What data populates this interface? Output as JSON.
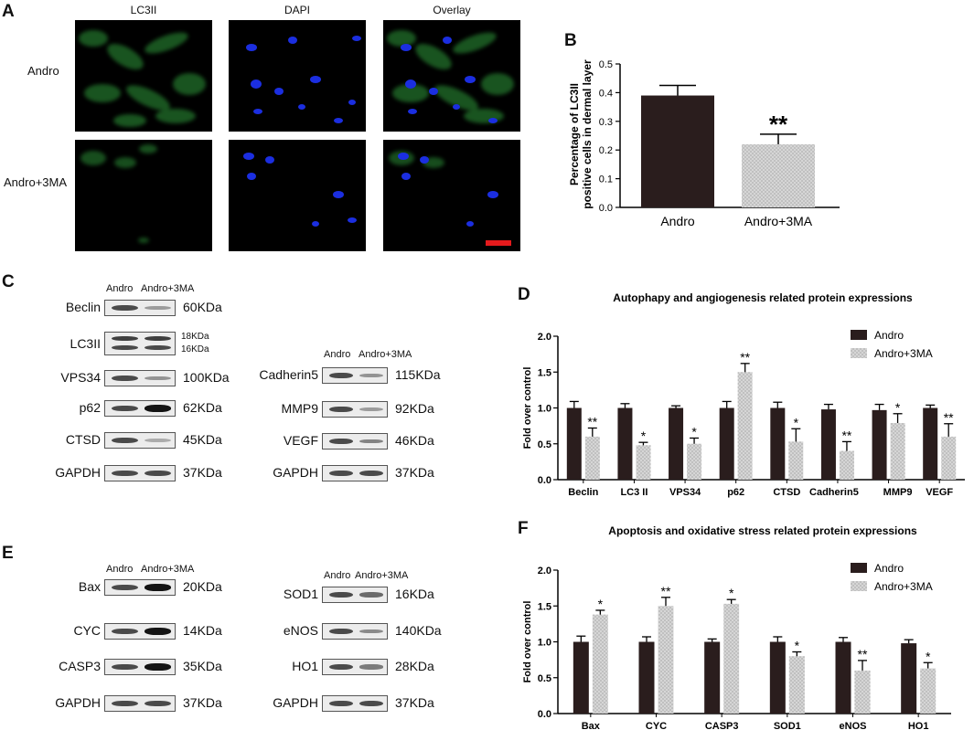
{
  "panels": {
    "A": "A",
    "B": "B",
    "C": "C",
    "D": "D",
    "E": "E",
    "F": "F"
  },
  "microscopy": {
    "columns": [
      "LC3II",
      "DAPI",
      "Overlay"
    ],
    "rows": [
      "Andro",
      "Andro+3MA"
    ],
    "colors": {
      "lc3": "#2e9a3a",
      "dapi": "#1b2ee0",
      "scalebar": "#e41a1c"
    }
  },
  "blots": {
    "C_left": {
      "header": [
        "Andro",
        "Andro+3MA"
      ],
      "rows": [
        {
          "name": "Beclin",
          "kda": "60KDa",
          "ratio": 0.5
        },
        {
          "name": "LC3II",
          "kda_top": "18KDa",
          "kda_bottom": "16KDa",
          "ratio": 1.0
        },
        {
          "name": "VPS34",
          "kda": "100KDa",
          "ratio": 0.55
        },
        {
          "name": "p62",
          "kda": "62KDa",
          "ratio": 1.4
        },
        {
          "name": "CTSD",
          "kda": "45KDa",
          "ratio": 0.4
        },
        {
          "name": "GAPDH",
          "kda": "37KDa",
          "ratio": 1.0
        }
      ]
    },
    "C_right": {
      "header": [
        "Andro",
        "Andro+3MA"
      ],
      "rows": [
        {
          "name": "Cadherin5",
          "kda": "115KDa",
          "ratio": 0.55
        },
        {
          "name": "MMP9",
          "kda": "92KDa",
          "ratio": 0.5
        },
        {
          "name": "VEGF",
          "kda": "46KDa",
          "ratio": 0.65
        },
        {
          "name": "GAPDH",
          "kda": "37KDa",
          "ratio": 1.0
        }
      ]
    },
    "E_left": {
      "header": [
        "Andro",
        "Andro+3MA"
      ],
      "rows": [
        {
          "name": "Bax",
          "kda": "20KDa",
          "ratio": 1.4
        },
        {
          "name": "CYC",
          "kda": "14KDa",
          "ratio": 1.5
        },
        {
          "name": "CASP3",
          "kda": "35KDa",
          "ratio": 1.4
        },
        {
          "name": "GAPDH",
          "kda": "37KDa",
          "ratio": 1.0
        }
      ]
    },
    "E_right": {
      "header": [
        "Andro",
        "Andro+3MA"
      ],
      "rows": [
        {
          "name": "SOD1",
          "kda": "16KDa",
          "ratio": 0.8
        },
        {
          "name": "eNOS",
          "kda": "140KDa",
          "ratio": 0.6
        },
        {
          "name": "HO1",
          "kda": "28KDa",
          "ratio": 0.7
        },
        {
          "name": "GAPDH",
          "kda": "37KDa",
          "ratio": 1.0
        }
      ]
    }
  },
  "chart_data": [
    {
      "id": "B",
      "type": "bar",
      "title": "",
      "ylabel_lines": [
        "Percentage of LC3II",
        "positive cells in dermal layer"
      ],
      "categories": [
        "Andro",
        "Andro+3MA"
      ],
      "values": [
        0.39,
        0.22
      ],
      "errors": [
        0.035,
        0.035
      ],
      "significance": [
        "",
        "**"
      ],
      "ylim": [
        0,
        0.5
      ],
      "yticks": [
        "0.0",
        "0.1",
        "0.2",
        "0.3",
        "0.4",
        "0.5"
      ],
      "colors": [
        "#2a1d1d",
        "#cfcfcf"
      ]
    },
    {
      "id": "D",
      "type": "bar",
      "title": "Autophapy and angiogenesis related protein expressions",
      "ylabel": "Fold over control",
      "categories": [
        "Beclin",
        "LC3 II",
        "VPS34",
        "p62",
        "CTSD",
        "Cadherin5",
        "MMP9",
        "VEGF"
      ],
      "ylim": [
        0,
        2.0
      ],
      "yticks": [
        "0.0",
        "0.5",
        "1.0",
        "1.5",
        "2.0"
      ],
      "legend_position": "top-right",
      "series": [
        {
          "name": "Andro",
          "color": "#2a1d1d",
          "values": [
            1.0,
            1.0,
            1.0,
            1.0,
            1.0,
            0.98,
            0.97,
            1.0
          ],
          "errors": [
            0.09,
            0.06,
            0.03,
            0.09,
            0.08,
            0.07,
            0.08,
            0.04
          ],
          "significance": [
            "",
            "",
            "",
            "",
            "",
            "",
            "",
            ""
          ]
        },
        {
          "name": "Andro+3MA",
          "color": "#cfcfcf",
          "values": [
            0.6,
            0.48,
            0.5,
            1.5,
            0.53,
            0.4,
            0.79,
            0.6
          ],
          "errors": [
            0.12,
            0.04,
            0.08,
            0.12,
            0.18,
            0.13,
            0.13,
            0.18
          ],
          "significance": [
            "**",
            "*",
            "*",
            "**",
            "*",
            "**",
            "*",
            "**"
          ]
        }
      ]
    },
    {
      "id": "F",
      "type": "bar",
      "title": "Apoptosis and oxidative stress related protein expressions",
      "ylabel": "Fold over control",
      "categories": [
        "Bax",
        "CYC",
        "CASP3",
        "SOD1",
        "eNOS",
        "HO1"
      ],
      "ylim": [
        0,
        2.0
      ],
      "yticks": [
        "0.0",
        "0.5",
        "1.0",
        "1.5",
        "2.0"
      ],
      "legend_position": "top-right",
      "series": [
        {
          "name": "Andro",
          "color": "#2a1d1d",
          "values": [
            1.0,
            1.0,
            1.0,
            1.0,
            1.0,
            0.98
          ],
          "errors": [
            0.08,
            0.07,
            0.04,
            0.07,
            0.06,
            0.05
          ],
          "significance": [
            "",
            "",
            "",
            "",
            "",
            ""
          ]
        },
        {
          "name": "Andro+3MA",
          "color": "#cfcfcf",
          "values": [
            1.38,
            1.5,
            1.53,
            0.8,
            0.6,
            0.63
          ],
          "errors": [
            0.06,
            0.12,
            0.06,
            0.06,
            0.14,
            0.08
          ],
          "significance": [
            "*",
            "**",
            "*",
            "*",
            "**",
            "*"
          ]
        }
      ]
    }
  ]
}
